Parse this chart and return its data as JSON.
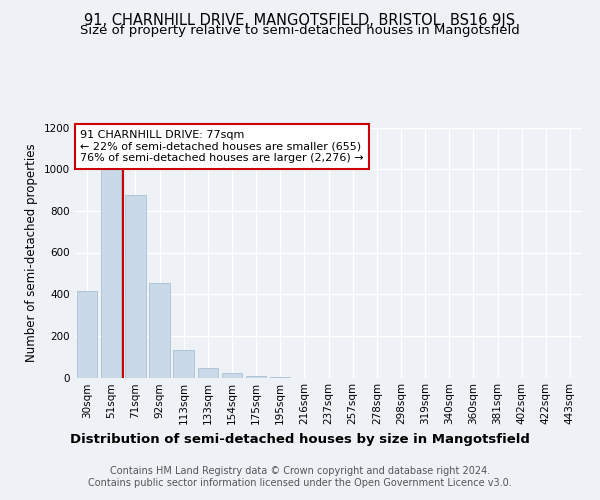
{
  "title": "91, CHARNHILL DRIVE, MANGOTSFIELD, BRISTOL, BS16 9JS",
  "subtitle": "Size of property relative to semi-detached houses in Mangotsfield",
  "xlabel": "Distribution of semi-detached houses by size in Mangotsfield",
  "ylabel": "Number of semi-detached properties",
  "categories": [
    "30sqm",
    "51sqm",
    "71sqm",
    "92sqm",
    "113sqm",
    "133sqm",
    "154sqm",
    "175sqm",
    "195sqm",
    "216sqm",
    "237sqm",
    "257sqm",
    "278sqm",
    "298sqm",
    "319sqm",
    "340sqm",
    "360sqm",
    "381sqm",
    "402sqm",
    "422sqm",
    "443sqm"
  ],
  "values": [
    415,
    1000,
    875,
    455,
    130,
    45,
    20,
    8,
    3,
    0,
    0,
    0,
    0,
    0,
    0,
    0,
    0,
    0,
    0,
    0,
    0
  ],
  "bar_color": "#c9d9e8",
  "bar_edge_color": "#a8bfd0",
  "property_line_color": "#cc0000",
  "annotation_text": "91 CHARNHILL DRIVE: 77sqm\n← 22% of semi-detached houses are smaller (655)\n76% of semi-detached houses are larger (2,276) →",
  "annotation_box_color": "#ffffff",
  "annotation_box_edge": "#cc0000",
  "ylim": [
    0,
    1200
  ],
  "yticks": [
    0,
    200,
    400,
    600,
    800,
    1000,
    1200
  ],
  "footer_text": "Contains HM Land Registry data © Crown copyright and database right 2024.\nContains public sector information licensed under the Open Government Licence v3.0.",
  "bg_color": "#eef2f7",
  "plot_bg_color": "#eef2f7",
  "title_fontsize": 10.5,
  "subtitle_fontsize": 9.5,
  "xlabel_fontsize": 9.5,
  "ylabel_fontsize": 8.5,
  "tick_fontsize": 7.5,
  "footer_fontsize": 7,
  "annot_fontsize": 8
}
